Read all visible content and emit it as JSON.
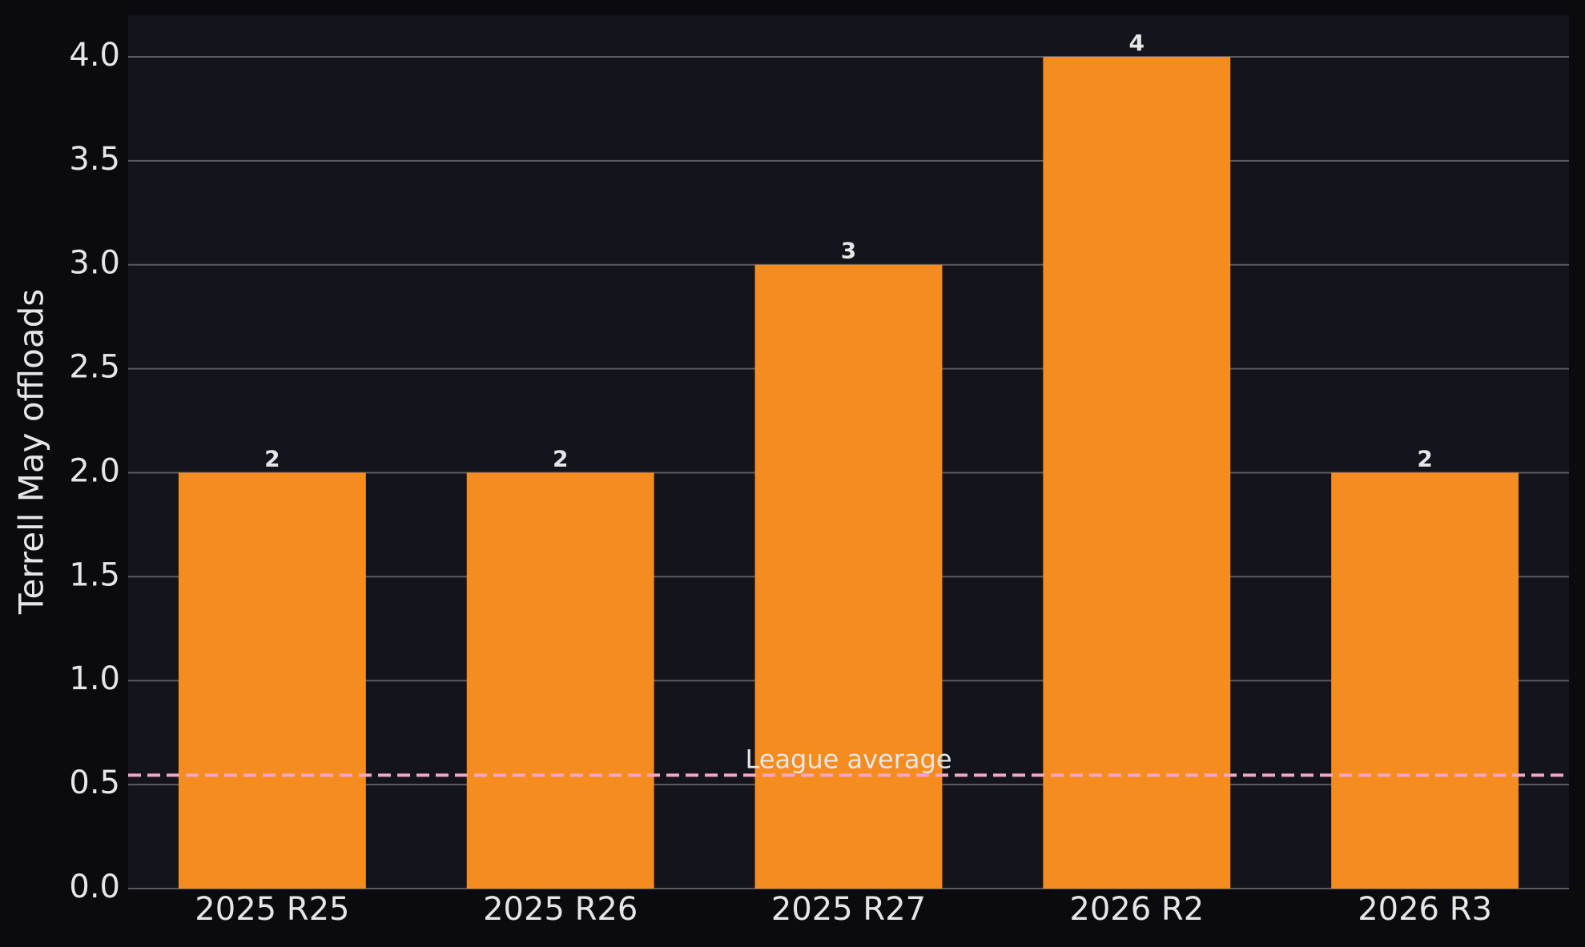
{
  "chart_data": {
    "type": "bar",
    "y_label": "Terrell May offloads",
    "categories": [
      "2025 R25",
      "2025 R26",
      "2025 R27",
      "2026 R2",
      "2026 R3"
    ],
    "values": [
      2,
      2,
      3,
      4,
      2
    ],
    "color": "#f58c20",
    "ylim": [
      0,
      4.2
    ],
    "yticks": [
      {
        "value": 0,
        "label": "0.0"
      },
      {
        "value": 0.5,
        "label": "0.5"
      },
      {
        "value": 1,
        "label": "1.0"
      },
      {
        "value": 1.5,
        "label": "1.5"
      },
      {
        "value": 2,
        "label": "2.0"
      },
      {
        "value": 2.5,
        "label": "2.5"
      },
      {
        "value": 3,
        "label": "3.0"
      },
      {
        "value": 3.5,
        "label": "3.5"
      },
      {
        "value": 4,
        "label": "4.0"
      }
    ],
    "grid": true,
    "reference_line": {
      "label": "League average",
      "value": 0.545,
      "color": "#f4a6c6"
    }
  }
}
